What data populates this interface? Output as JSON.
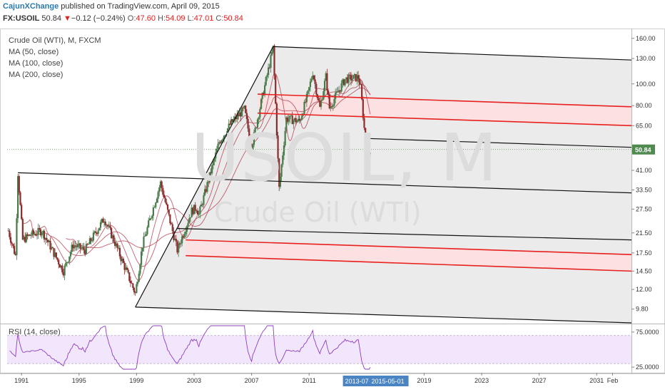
{
  "header": {
    "author": "CajunXChange",
    "published": "published on TradingView.com, April 09, 2015",
    "symbol": "FX:USOIL",
    "last": "50.84",
    "change": "−0.12 (−0.24%)",
    "o_label": "O:",
    "o_value": "47.60",
    "h_label": "H:",
    "h_value": "54.09",
    "l_label": "L:",
    "l_value": "47.01",
    "c_label": "C:",
    "c_value": "50.84"
  },
  "legend": {
    "title": "Crude Oil (WTI), M, FXCM",
    "ma50": "MA (50, close)",
    "ma100": "MA (100, close)",
    "ma200": "MA (200, close)"
  },
  "watermark": {
    "symbol": "USOIL, M",
    "name": "Crude Oil (WTI)"
  },
  "rsi_label": "RSI (14, close)",
  "colors": {
    "up": "#4a7a4a",
    "down": "#8b2d2d",
    "ma": "#b03a4a",
    "channel_fill": "#e6e6e6",
    "red_zone": "#fbe1e1",
    "red_line": "#e8211f",
    "rsi": "#8e3dbf",
    "rsi_band": "#f1e6fb",
    "axis_highlight": "#4a84c3"
  },
  "chart_data": {
    "type": "candlestick",
    "title": "Crude Oil (WTI), M, FXCM",
    "y_scale": "log",
    "ylim": [
      8.5,
      172
    ],
    "xlim": [
      "1990-01",
      "2033-06"
    ],
    "price_ticks": [
      "160.00",
      "130.00",
      "100.00",
      "80.00",
      "65.00",
      "50.00",
      "41.00",
      "33.50",
      "27.50",
      "21.50",
      "17.50",
      "14.50",
      "12.00",
      "9.80"
    ],
    "last_price_label": "50.84",
    "x_ticks": [
      "1991",
      "1995",
      "1999",
      "2003",
      "2007",
      "2011",
      "2019",
      "2023",
      "2027",
      "2031",
      "Feb"
    ],
    "x_highlight_labels": [
      "2013-07-01",
      "2015-05-01"
    ],
    "rsi_ticks": [
      "75.0000",
      "25.0000"
    ],
    "rsi_lim": [
      20,
      85
    ],
    "rsi_band": [
      30,
      70
    ],
    "price_path": [
      {
        "x": "1990-02",
        "y": 22
      },
      {
        "x": "1990-08",
        "y": 17
      },
      {
        "x": "1990-10",
        "y": 40
      },
      {
        "x": "1991-02",
        "y": 20
      },
      {
        "x": "1991-08",
        "y": 21
      },
      {
        "x": "1992-06",
        "y": 22
      },
      {
        "x": "1993-12",
        "y": 14.5
      },
      {
        "x": "1994-08",
        "y": 19
      },
      {
        "x": "1995-06",
        "y": 18
      },
      {
        "x": "1996-10",
        "y": 25
      },
      {
        "x": "1997-06",
        "y": 20
      },
      {
        "x": "1998-12",
        "y": 11.5
      },
      {
        "x": "1999-06",
        "y": 19
      },
      {
        "x": "2000-09",
        "y": 36
      },
      {
        "x": "2001-11",
        "y": 18
      },
      {
        "x": "2002-11",
        "y": 27
      },
      {
        "x": "2003-03",
        "y": 28
      },
      {
        "x": "2003-05",
        "y": 26
      },
      {
        "x": "2004-10",
        "y": 55
      },
      {
        "x": "2005-08",
        "y": 67
      },
      {
        "x": "2006-07",
        "y": 77
      },
      {
        "x": "2007-01",
        "y": 52
      },
      {
        "x": "2007-06",
        "y": 70
      },
      {
        "x": "2008-07",
        "y": 145
      },
      {
        "x": "2008-12",
        "y": 34
      },
      {
        "x": "2009-06",
        "y": 70
      },
      {
        "x": "2010-05",
        "y": 68
      },
      {
        "x": "2010-12",
        "y": 90
      },
      {
        "x": "2011-04",
        "y": 113
      },
      {
        "x": "2011-10",
        "y": 78
      },
      {
        "x": "2012-03",
        "y": 108
      },
      {
        "x": "2012-06",
        "y": 78
      },
      {
        "x": "2012-12",
        "y": 90
      },
      {
        "x": "2013-07",
        "y": 105
      },
      {
        "x": "2014-06",
        "y": 107
      },
      {
        "x": "2014-08",
        "y": 96
      },
      {
        "x": "2014-12",
        "y": 55
      },
      {
        "x": "2015-01",
        "y": 45
      },
      {
        "x": "2015-04",
        "y": 50.84
      }
    ],
    "lines": [
      {
        "kind": "channel-top",
        "color": "black",
        "from": {
          "x": "2008-07",
          "y": 147
        },
        "to": {
          "x": "2033-06",
          "y": 128
        }
      },
      {
        "kind": "pitchfork-median",
        "color": "black",
        "from": {
          "x": "1998-12",
          "y": 10
        },
        "to": {
          "x": "2008-07",
          "y": 147
        }
      },
      {
        "kind": "channel-bottom",
        "color": "black",
        "from": {
          "x": "1998-12",
          "y": 10
        },
        "to": {
          "x": "2033-06",
          "y": 8.5
        }
      },
      {
        "kind": "parallel",
        "color": "black",
        "from": {
          "x": "2014-12",
          "y": 57
        },
        "to": {
          "x": "2033-06",
          "y": 52
        }
      },
      {
        "kind": "parallel",
        "color": "black",
        "from": {
          "x": "1990-10",
          "y": 40
        },
        "to": {
          "x": "2033-06",
          "y": 32.5
        }
      },
      {
        "kind": "parallel",
        "color": "black",
        "from": {
          "x": "2001-11",
          "y": 22.5
        },
        "to": {
          "x": "2033-06",
          "y": 20
        }
      },
      {
        "kind": "resistance",
        "color": "red",
        "from": {
          "x": "2007-06",
          "y": 90
        },
        "to": {
          "x": "2033-06",
          "y": 79
        }
      },
      {
        "kind": "resistance",
        "color": "red",
        "from": {
          "x": "2007-06",
          "y": 74
        },
        "to": {
          "x": "2033-06",
          "y": 65
        }
      },
      {
        "kind": "support",
        "color": "red",
        "from": {
          "x": "2002-06",
          "y": 20
        },
        "to": {
          "x": "2033-06",
          "y": 17.2
        }
      },
      {
        "kind": "support",
        "color": "red",
        "from": {
          "x": "2002-06",
          "y": 17
        },
        "to": {
          "x": "2033-06",
          "y": 14.5
        }
      }
    ]
  }
}
